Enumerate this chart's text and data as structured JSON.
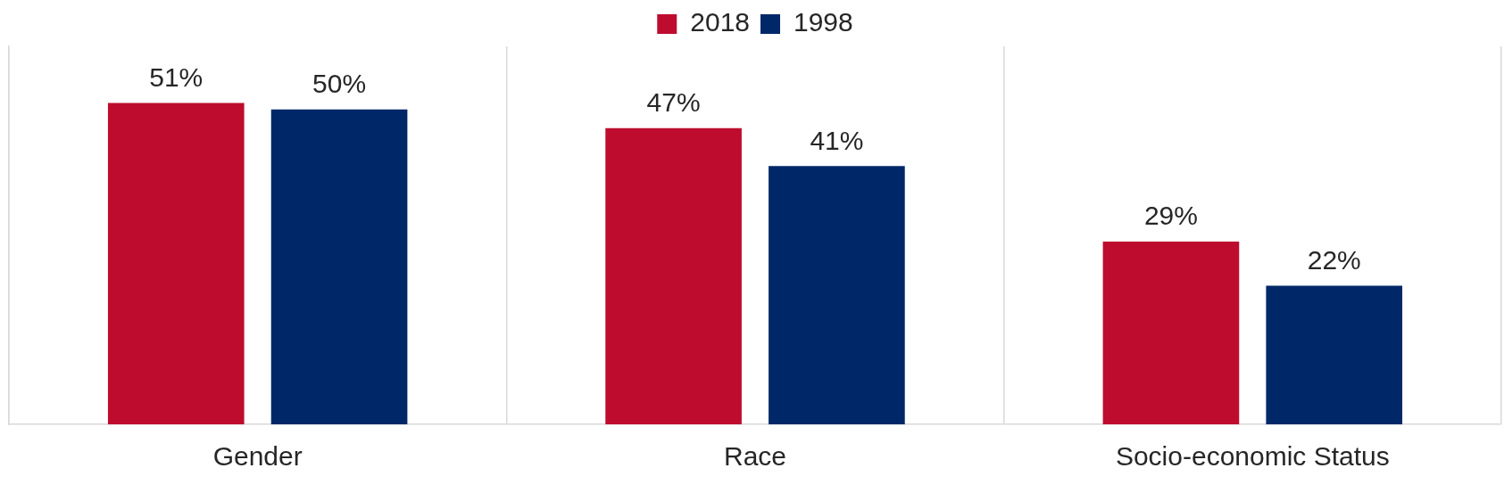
{
  "chart_data": {
    "type": "bar",
    "categories": [
      "Gender",
      "Race",
      "Socio-economic Status"
    ],
    "series": [
      {
        "name": "2018",
        "color": "#be0c2f",
        "values": [
          51,
          47,
          29
        ],
        "value_labels": [
          "51%",
          "47%",
          "29%"
        ]
      },
      {
        "name": "1998",
        "color": "#002868",
        "values": [
          50,
          41,
          22
        ],
        "value_labels": [
          "50%",
          "41%",
          "22%"
        ]
      }
    ],
    "ylim": [
      0,
      60
    ],
    "tick_labels": "x",
    "grid": "x",
    "legend": "top"
  }
}
